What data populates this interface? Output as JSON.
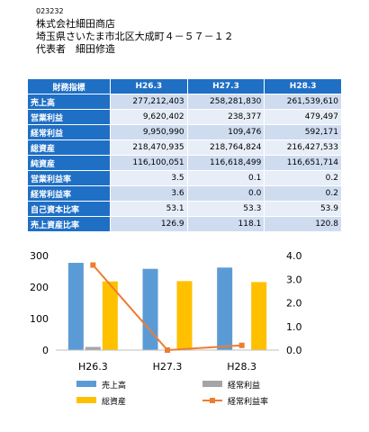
{
  "header": {
    "code": "023232",
    "company": "株式会社細田商店",
    "address": "埼玉県さいたま市北区大成町４－５７－１２",
    "representative": "代表者　細田修造"
  },
  "table": {
    "corner": "財務指標",
    "columns": [
      "H26.3",
      "H27.3",
      "H28.3"
    ],
    "rows": [
      {
        "label": "売上高",
        "values": [
          "277,212,403",
          "258,281,830",
          "261,539,610"
        ]
      },
      {
        "label": "営業利益",
        "values": [
          "9,620,402",
          "238,377",
          "479,497"
        ]
      },
      {
        "label": "経常利益",
        "values": [
          "9,950,990",
          "109,476",
          "592,171"
        ]
      },
      {
        "label": "総資産",
        "values": [
          "218,470,935",
          "218,764,824",
          "216,427,533"
        ]
      },
      {
        "label": "純資産",
        "values": [
          "116,100,051",
          "116,618,499",
          "116,651,714"
        ]
      },
      {
        "label": "営業利益率",
        "values": [
          "3.5",
          "0.1",
          "0.2"
        ]
      },
      {
        "label": "経常利益率",
        "values": [
          "3.6",
          "0.0",
          "0.2"
        ]
      },
      {
        "label": "自己資本比率",
        "values": [
          "53.1",
          "53.3",
          "53.9"
        ]
      },
      {
        "label": "売上資産比率",
        "values": [
          "126.9",
          "118.1",
          "120.8"
        ]
      }
    ]
  },
  "chart_data": {
    "type": "bar",
    "categories": [
      "H26.3",
      "H27.3",
      "H28.3"
    ],
    "series": [
      {
        "name": "売上高",
        "kind": "bar",
        "axis": "left",
        "color": "#5b9bd5",
        "values": [
          277,
          258,
          262
        ]
      },
      {
        "name": "経常利益",
        "kind": "bar",
        "axis": "left",
        "color": "#a5a5a5",
        "values": [
          10,
          0,
          1
        ]
      },
      {
        "name": "総資産",
        "kind": "bar",
        "axis": "left",
        "color": "#ffc000",
        "values": [
          218,
          219,
          216
        ]
      },
      {
        "name": "経常利益率",
        "kind": "line",
        "axis": "right",
        "color": "#ed7d31",
        "values": [
          3.6,
          0.0,
          0.2
        ]
      }
    ],
    "y_left": {
      "min": 0,
      "max": 300,
      "ticks": [
        "0",
        "100",
        "200",
        "300"
      ]
    },
    "y_right": {
      "min": 0,
      "max": 4,
      "ticks": [
        "0.0",
        "1.0",
        "2.0",
        "3.0",
        "4.0"
      ]
    },
    "legend_position": "bottom",
    "legend": [
      "売上高",
      "経常利益",
      "総資産",
      "経常利益率"
    ]
  }
}
